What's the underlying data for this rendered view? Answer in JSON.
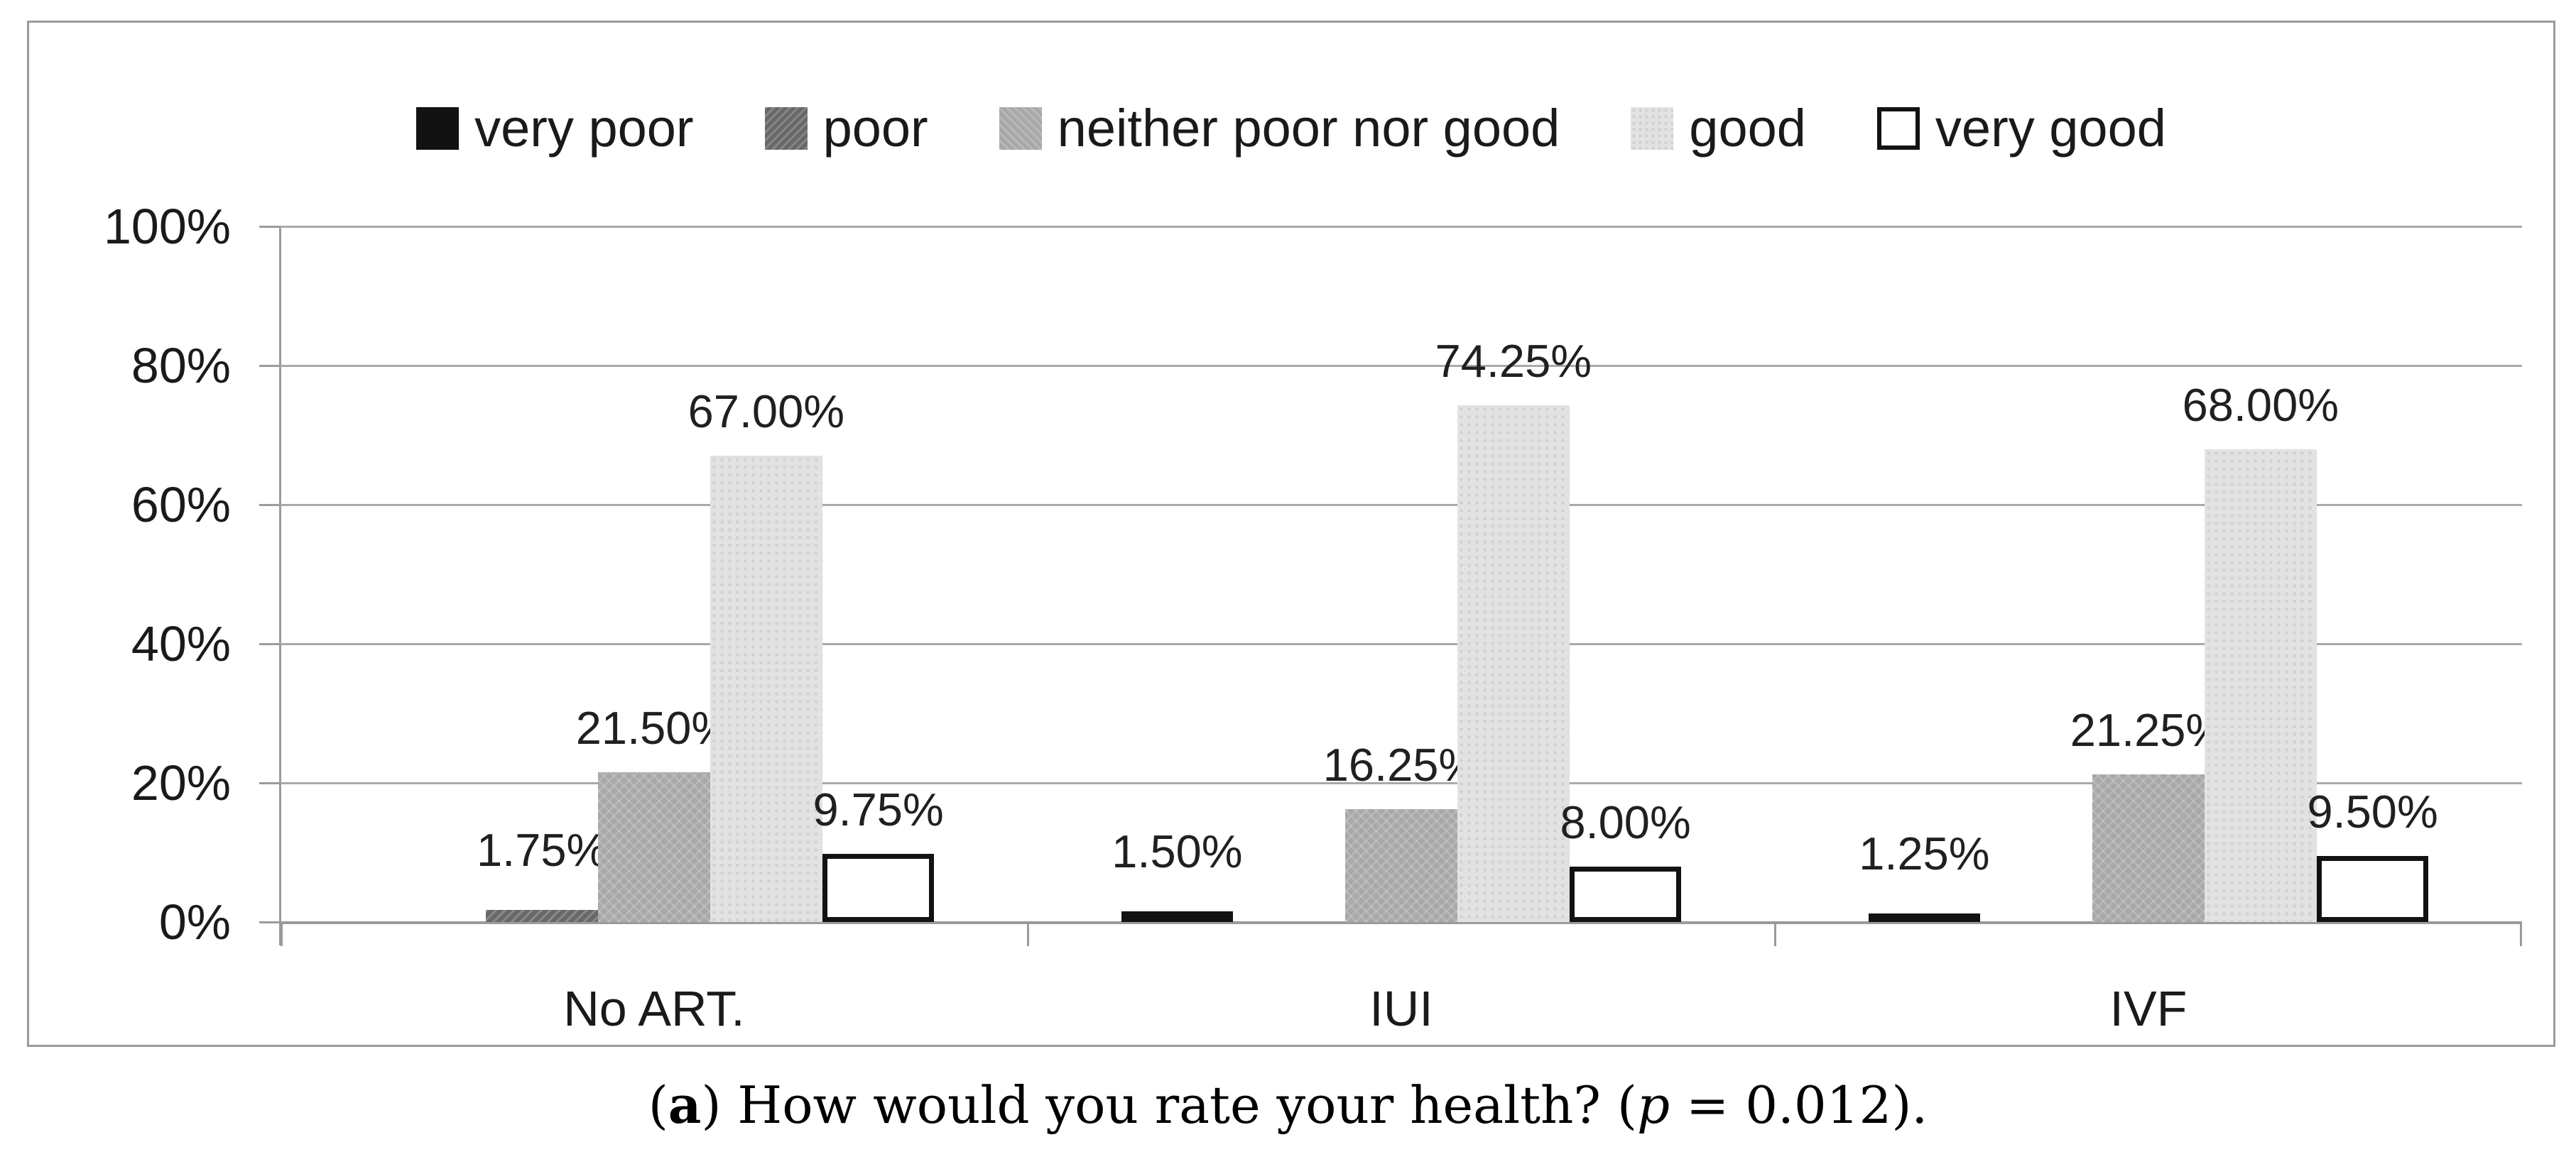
{
  "figure": {
    "caption": {
      "open_paren": "(",
      "label_letter": "a",
      "close_paren": ") ",
      "question": "How would you rate your health? (",
      "p_symbol": "p",
      "p_rest": " = 0.012)."
    }
  },
  "chart_data": {
    "type": "bar",
    "title": "",
    "xlabel": "",
    "ylabel": "",
    "categories": [
      "No ART.",
      "IUI",
      "IVF"
    ],
    "series": [
      {
        "name": "very poor",
        "key": "very_poor",
        "color": "#121212",
        "values": [
          0,
          1.5,
          1.25
        ]
      },
      {
        "name": "poor",
        "key": "poor",
        "color": "#686868",
        "values": [
          1.75,
          0,
          0
        ]
      },
      {
        "name": "neither poor nor good",
        "key": "neither",
        "color": "#a8a8a8",
        "values": [
          21.5,
          16.25,
          21.25
        ]
      },
      {
        "name": "good",
        "key": "good",
        "color": "#e2e2e2",
        "values": [
          67.0,
          74.25,
          68.0
        ]
      },
      {
        "name": "very good",
        "key": "very_good",
        "color": "#ffffff",
        "border_color": "#121212",
        "values": [
          9.75,
          8.0,
          9.5
        ]
      }
    ],
    "data_labels": {
      "No ART.": {
        "poor": "1.75%",
        "neither poor nor good": "21.50%",
        "good": "67.00%",
        "very good": "9.75%"
      },
      "IUI": {
        "very poor": "1.50%",
        "neither poor nor good": "16.25%",
        "good": "74.25%",
        "very good": "8.00%"
      },
      "IVF": {
        "very poor": "1.25%",
        "neither poor nor good": "21.25%",
        "good": "68.00%",
        "very good": "9.50%"
      }
    },
    "y_axis": {
      "min": 0,
      "max": 100,
      "tick_values": [
        0,
        20,
        40,
        60,
        80,
        100
      ],
      "tick_suffix": "%",
      "grid": true
    },
    "legend_position": "top",
    "accent_colors": {
      "gridline": "#a9a9a9",
      "axis": "#9b9b9b",
      "frame": "#9b9b9b",
      "text": "#1a1a1a"
    }
  }
}
